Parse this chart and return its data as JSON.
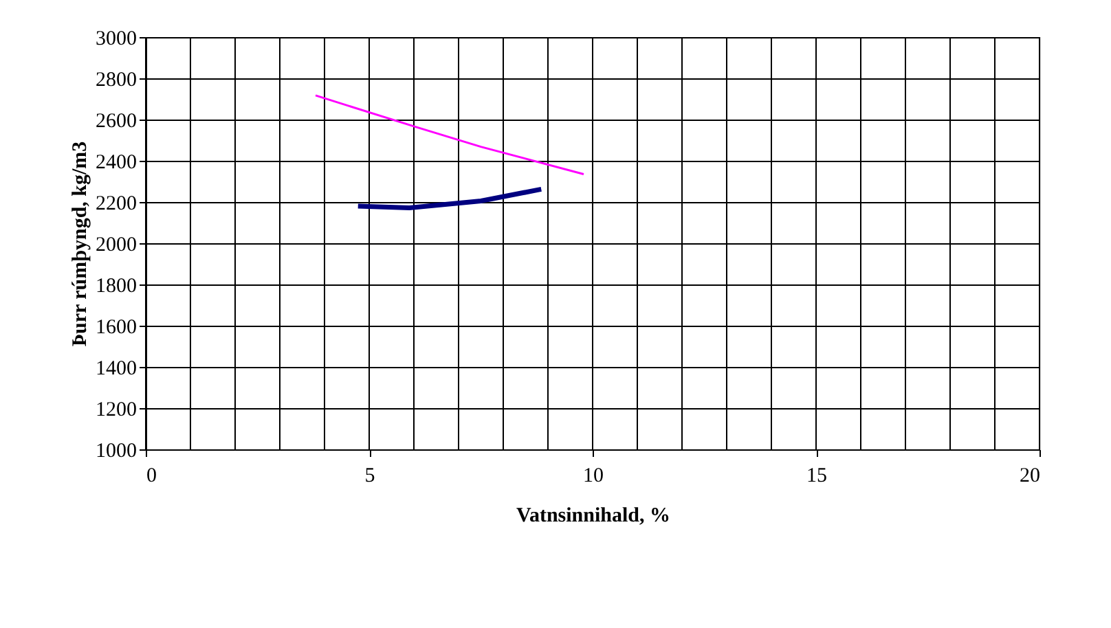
{
  "chart_data": {
    "type": "line",
    "xlabel": "Vatnsinnihald, %",
    "ylabel": "Þurr rúmþyngd, kg/m3",
    "series": [
      {
        "color": "#ff00ff",
        "x": [
          3.8,
          6.0,
          7.5,
          9.8
        ],
        "values": [
          2717,
          2567,
          2468,
          2335
        ]
      },
      {
        "color": "#000080",
        "x": [
          4.75,
          5.9,
          7.5,
          8.85
        ],
        "values": [
          2180,
          2172,
          2205,
          2262
        ]
      }
    ],
    "xlim": [
      0,
      20
    ],
    "xticks": [
      0,
      5,
      10,
      15,
      20
    ],
    "ylim": [
      1000,
      3000
    ],
    "yticks": [
      1000,
      1200,
      1400,
      1600,
      1800,
      2000,
      2200,
      2400,
      2600,
      2800,
      3000
    ],
    "grid": true,
    "marker": "none",
    "line_style": "solid"
  }
}
